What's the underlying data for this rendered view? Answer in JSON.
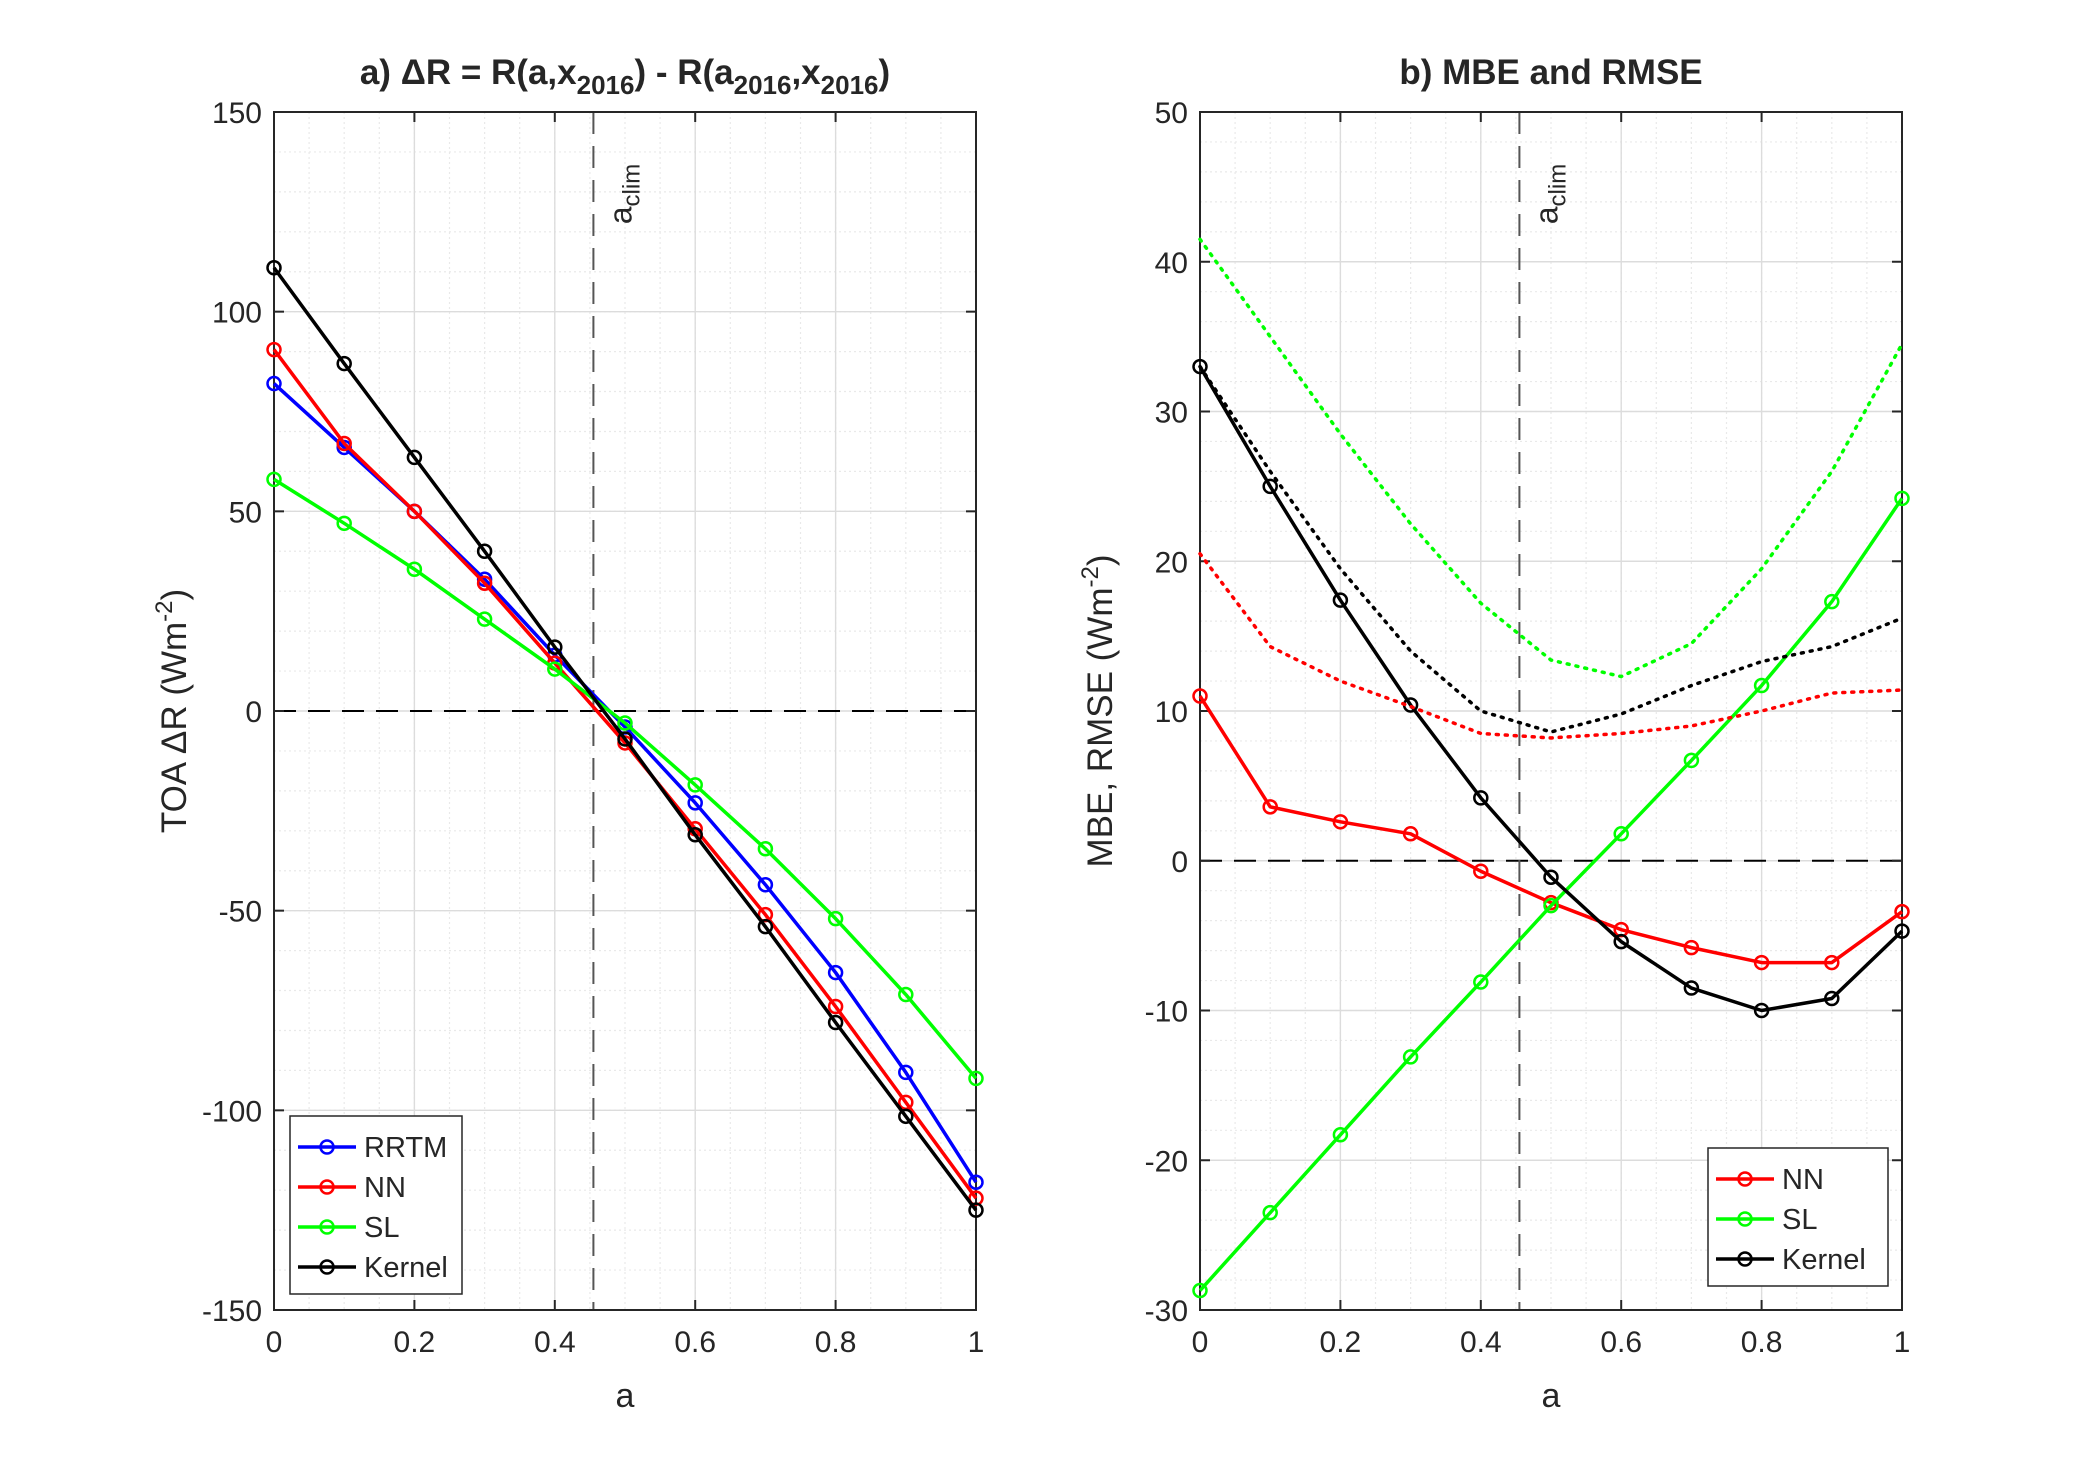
{
  "chart_data": [
    {
      "type": "line",
      "title_parts": [
        "a) ",
        "ΔR = R(a,x",
        "2016",
        ") - R(a",
        "2016",
        ",x",
        "2016",
        ")"
      ],
      "xlabel": "a",
      "ylabel": "TOA ΔR (Wm",
      "ylabel_sup": "-2",
      "ylabel_close": ")",
      "xlim": [
        0,
        1
      ],
      "ylim": [
        -150,
        150
      ],
      "xticks": [
        0,
        0.2,
        0.4,
        0.6,
        0.8,
        1
      ],
      "xtick_labels": [
        "0",
        "0.2",
        "0.4",
        "0.6",
        "0.8",
        "1"
      ],
      "yticks": [
        -150,
        -100,
        -50,
        0,
        50,
        100,
        150
      ],
      "ytick_labels": [
        "-150",
        "-100",
        "-50",
        "0",
        "50",
        "100",
        "150"
      ],
      "grid": true,
      "minor_grid": true,
      "vline": {
        "x": 0.455,
        "label": "a",
        "label_sub": "clim"
      },
      "hline": {
        "y": 0
      },
      "legend_position": "bottom-left",
      "x": [
        0,
        0.1,
        0.2,
        0.3,
        0.4,
        0.5,
        0.6,
        0.7,
        0.8,
        0.9,
        1.0
      ],
      "series": [
        {
          "name": "RRTM",
          "color": "#0000ff",
          "style": "solid",
          "markers": true,
          "values": [
            82,
            66,
            50,
            33,
            14,
            -4,
            -23,
            -43.5,
            -65.5,
            -90.5,
            -118
          ]
        },
        {
          "name": "NN",
          "color": "#ff0000",
          "style": "solid",
          "markers": true,
          "values": [
            90.5,
            67,
            50,
            32,
            12,
            -8,
            -29.5,
            -51,
            -74,
            -98,
            -122
          ]
        },
        {
          "name": "SL",
          "color": "#00ff00",
          "style": "solid",
          "markers": true,
          "values": [
            58,
            47,
            35.5,
            23,
            10.5,
            -3,
            -18.5,
            -34.5,
            -52,
            -71,
            -92
          ]
        },
        {
          "name": "Kernel",
          "color": "#000000",
          "style": "solid",
          "markers": true,
          "values": [
            111,
            87,
            63.5,
            40,
            16,
            -7,
            -31,
            -54,
            -78,
            -101.5,
            -125
          ]
        }
      ]
    },
    {
      "type": "line",
      "title": "b) MBE and RMSE",
      "xlabel": "a",
      "ylabel": "MBE, RMSE  (Wm",
      "ylabel_sup": "-2",
      "ylabel_close": ")",
      "xlim": [
        0,
        1
      ],
      "ylim": [
        -30,
        50
      ],
      "xticks": [
        0,
        0.2,
        0.4,
        0.6,
        0.8,
        1
      ],
      "xtick_labels": [
        "0",
        "0.2",
        "0.4",
        "0.6",
        "0.8",
        "1"
      ],
      "yticks": [
        -30,
        -20,
        -10,
        0,
        10,
        20,
        30,
        40,
        50
      ],
      "ytick_labels": [
        "-30",
        "-20",
        "-10",
        "0",
        "10",
        "20",
        "30",
        "40",
        "50"
      ],
      "grid": true,
      "minor_grid": true,
      "vline": {
        "x": 0.455,
        "label": "a",
        "label_sub": "clim"
      },
      "hline": {
        "y": 0
      },
      "legend_position": "bottom-right",
      "x": [
        0,
        0.1,
        0.2,
        0.3,
        0.4,
        0.5,
        0.6,
        0.7,
        0.8,
        0.9,
        1.0
      ],
      "series": [
        {
          "name": "NN",
          "color": "#ff0000",
          "style": "solid",
          "markers": true,
          "values": [
            11,
            3.6,
            2.6,
            1.8,
            -0.7,
            -2.8,
            -4.6,
            -5.8,
            -6.8,
            -6.8,
            -3.4
          ]
        },
        {
          "name": "SL",
          "color": "#00ff00",
          "style": "solid",
          "markers": true,
          "values": [
            -28.7,
            -23.5,
            -18.3,
            -13.1,
            -8.1,
            -3.0,
            1.8,
            6.7,
            11.7,
            17.3,
            24.2
          ]
        },
        {
          "name": "Kernel",
          "color": "#000000",
          "style": "solid",
          "markers": true,
          "values": [
            33,
            25,
            17.4,
            10.4,
            4.2,
            -1.1,
            -5.4,
            -8.5,
            -10.0,
            -9.2,
            -4.7
          ]
        },
        {
          "color": "#ff0000",
          "style": "dotted",
          "markers": false,
          "values": [
            20.5,
            14.3,
            12.0,
            10.3,
            8.5,
            8.2,
            8.5,
            9.0,
            10.0,
            11.2,
            11.4
          ]
        },
        {
          "color": "#00ff00",
          "style": "dotted",
          "markers": false,
          "values": [
            41.5,
            35.0,
            28.5,
            22.5,
            17.2,
            13.4,
            12.3,
            14.5,
            19.5,
            26.0,
            34.5
          ]
        },
        {
          "color": "#000000",
          "style": "dotted",
          "markers": false,
          "values": [
            33,
            26,
            19.5,
            14,
            10,
            8.6,
            9.8,
            11.7,
            13.3,
            14.3,
            16.2
          ]
        }
      ]
    }
  ]
}
